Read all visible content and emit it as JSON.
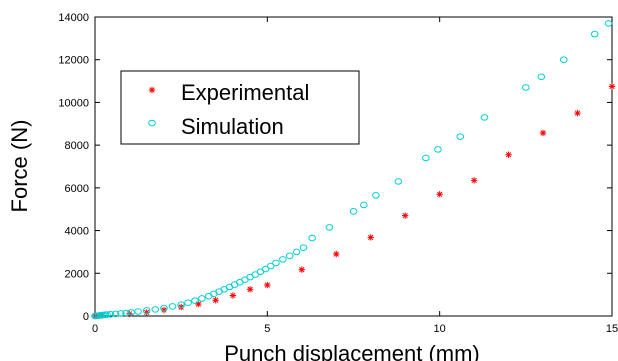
{
  "chart_data": {
    "type": "scatter",
    "title": "",
    "xlabel": "Punch displacement (mm)",
    "ylabel": "Force (N)",
    "xlim": [
      0,
      15
    ],
    "ylim": [
      0,
      14000
    ],
    "x_ticks": [
      0,
      5,
      10,
      15
    ],
    "x_tick_labels": [
      "0",
      "5",
      "10",
      "15"
    ],
    "y_ticks": [
      0,
      2000,
      4000,
      6000,
      8000,
      10000,
      12000,
      14000
    ],
    "y_tick_labels": [
      "0",
      "2000",
      "4000",
      "6000",
      "8000",
      "10000",
      "12000",
      "14000"
    ],
    "grid": false,
    "legend_position": "upper-left",
    "series": [
      {
        "name": "Experimental",
        "marker": "asterisk",
        "color": "#ff0000",
        "x": [
          0,
          0.1,
          0.2,
          1,
          1.5,
          2,
          2.5,
          3,
          3.5,
          4,
          4.5,
          5,
          6,
          7,
          8,
          9,
          10,
          11,
          12,
          13,
          14,
          15
        ],
        "y": [
          0,
          10,
          20,
          100,
          170,
          280,
          420,
          560,
          740,
          960,
          1250,
          1450,
          2170,
          2900,
          3680,
          4700,
          5700,
          6350,
          7550,
          8570,
          9500,
          10750
        ]
      },
      {
        "name": "Simulation",
        "marker": "circle",
        "color": "#00d0d0",
        "x": [
          0,
          0.05,
          0.1,
          0.15,
          0.2,
          0.25,
          0.3,
          0.35,
          0.45,
          0.6,
          0.75,
          0.9,
          1.05,
          1.25,
          1.5,
          1.75,
          2.0,
          2.25,
          2.5,
          2.7,
          2.9,
          3.1,
          3.3,
          3.45,
          3.6,
          3.75,
          3.9,
          4.05,
          4.2,
          4.35,
          4.5,
          4.65,
          4.8,
          4.95,
          5.1,
          5.25,
          5.45,
          5.65,
          5.85,
          6.05,
          6.3,
          6.8,
          7.5,
          7.8,
          8.15,
          8.8,
          9.6,
          9.95,
          10.6,
          11.3,
          12.5,
          12.95,
          13.6,
          14.5,
          14.9
        ],
        "y": [
          0,
          10,
          20,
          30,
          40,
          50,
          60,
          70,
          80,
          100,
          120,
          140,
          170,
          210,
          260,
          310,
          370,
          450,
          530,
          620,
          720,
          820,
          930,
          1040,
          1140,
          1250,
          1360,
          1470,
          1580,
          1700,
          1820,
          1940,
          2070,
          2200,
          2340,
          2480,
          2650,
          2820,
          3000,
          3200,
          3650,
          4150,
          4900,
          5200,
          5650,
          6300,
          7400,
          7800,
          8400,
          9300,
          10700,
          11200,
          12000,
          13200,
          13700
        ]
      }
    ]
  }
}
